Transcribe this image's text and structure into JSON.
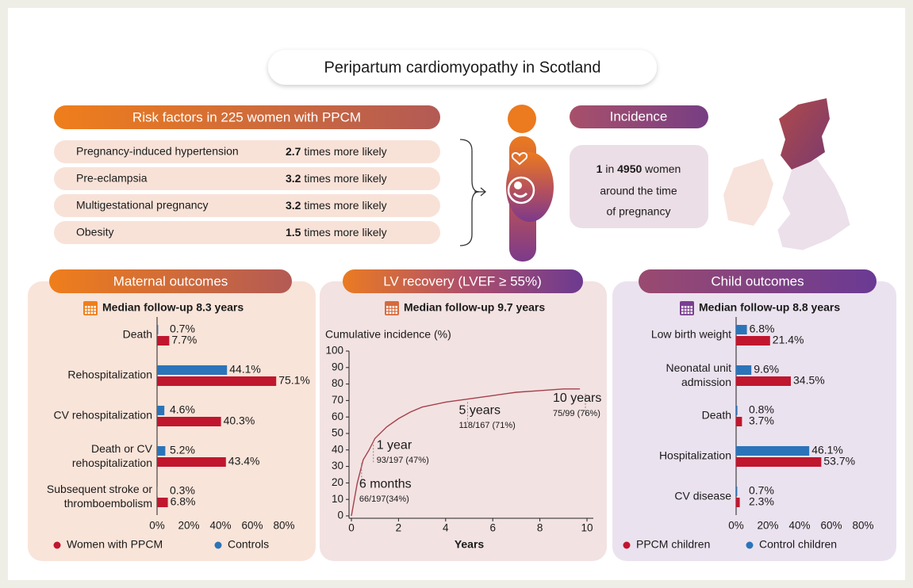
{
  "title": "Peripartum cardiomyopathy in Scotland",
  "risk_factors": {
    "title": "Risk factors in 225 women with PPCM",
    "rows": [
      {
        "name": "Pregnancy-induced hypertension",
        "value": 2.7,
        "suffix": " times more likely"
      },
      {
        "name": "Pre-eclampsia",
        "value": 3.2,
        "suffix": " times more likely"
      },
      {
        "name": "Multigestational pregnancy",
        "value": 3.2,
        "suffix": " times more likely"
      },
      {
        "name": "Obesity",
        "value": 1.5,
        "suffix": " times more likely"
      }
    ]
  },
  "incidence": {
    "title": "Incidence",
    "count": 1,
    "in": " in ",
    "total": 4950,
    "unit": " women",
    "line2": "around the time",
    "line3": "of pregnancy"
  },
  "chart_data": [
    {
      "type": "bar",
      "orientation": "horizontal",
      "title": "Maternal outcomes",
      "subtitle": "Median follow-up 8.3 years",
      "categories": [
        "Death",
        "Rehospitalization",
        "CV rehospitalization",
        "Death or CV\nrehospitalization",
        "Subsequent stroke or\nthromboembolism"
      ],
      "series": [
        {
          "name": "Women with PPCM",
          "color": "#c0162e",
          "values": [
            7.7,
            75.1,
            40.3,
            43.4,
            6.8
          ],
          "value_labels": [
            "7.7%",
            "75.1%",
            "40.3%",
            "43.4%",
            "6.8%"
          ]
        },
        {
          "name": "Controls",
          "color": "#2b74b9",
          "values": [
            0.7,
            44.1,
            4.6,
            5.2,
            0.3
          ],
          "value_labels": [
            "0.7%",
            "44.1%",
            "4.6%",
            "5.2%",
            "0.3%"
          ]
        }
      ],
      "xlim": [
        0,
        80
      ],
      "xticks": [
        {
          "value": 0,
          "label": "0%"
        },
        {
          "value": 20,
          "label": "20%"
        },
        {
          "value": 40,
          "label": "40%"
        },
        {
          "value": 60,
          "label": "60%"
        },
        {
          "value": 80,
          "label": "80%"
        }
      ]
    },
    {
      "type": "line",
      "title": "LV recovery (LVEF ≥ 55%)",
      "subtitle": "Median follow-up 9.7 years",
      "ylabel": "Cumulative incidence (%)",
      "xlabel": "Years",
      "x": [
        0,
        0.1,
        0.25,
        0.5,
        0.75,
        1,
        1.5,
        2,
        2.5,
        3,
        4,
        5,
        6,
        7,
        8,
        9,
        9.7
      ],
      "series": [
        {
          "color": "#a3414b",
          "values": [
            0,
            8,
            20,
            34,
            40,
            47,
            54,
            59,
            63,
            66,
            69,
            71,
            73,
            75,
            76,
            77,
            77
          ]
        }
      ],
      "xlim": [
        0,
        10
      ],
      "xticks": [
        0,
        2,
        4,
        6,
        8,
        10
      ],
      "ylim": [
        0,
        100
      ],
      "yticks": [
        0,
        10,
        20,
        30,
        40,
        50,
        60,
        70,
        80,
        90,
        100
      ],
      "annotations": [
        {
          "label": "6 months",
          "detail": "66/197(34%)",
          "x": 0.5,
          "y": 34
        },
        {
          "label": "1 year",
          "detail": "93/197 (47%)",
          "x": 1,
          "y": 47
        },
        {
          "label": "5 years",
          "detail": "118/167 (71%)",
          "x": 5,
          "y": 71
        },
        {
          "label": "10 years",
          "detail": "75/99 (76%)",
          "x": 10,
          "y": 76
        }
      ]
    },
    {
      "type": "bar",
      "orientation": "horizontal",
      "title": "Child outcomes",
      "subtitle": "Median follow-up 8.8 years",
      "categories": [
        "Low birth weight",
        "Neonatal unit\nadmission",
        "Death",
        "Hospitalization",
        "CV disease"
      ],
      "series": [
        {
          "name": "PPCM children",
          "color": "#c0162e",
          "values": [
            21.4,
            34.5,
            3.7,
            53.7,
            2.3
          ],
          "value_labels": [
            "21.4%",
            "34.5%",
            "3.7%",
            "53.7%",
            "2.3%"
          ]
        },
        {
          "name": "Control children",
          "color": "#2b74b9",
          "values": [
            6.8,
            9.6,
            0.8,
            46.1,
            0.7
          ],
          "value_labels": [
            "6.8%",
            "9.6%",
            "0.8%",
            "46.1%",
            "0.7%"
          ]
        }
      ],
      "xlim": [
        0,
        80
      ],
      "xticks": [
        {
          "value": 0,
          "label": "0%"
        },
        {
          "value": 20,
          "label": "20%"
        },
        {
          "value": 40,
          "label": "40%"
        },
        {
          "value": 60,
          "label": "60%"
        },
        {
          "value": 80,
          "label": "80%"
        }
      ]
    }
  ]
}
